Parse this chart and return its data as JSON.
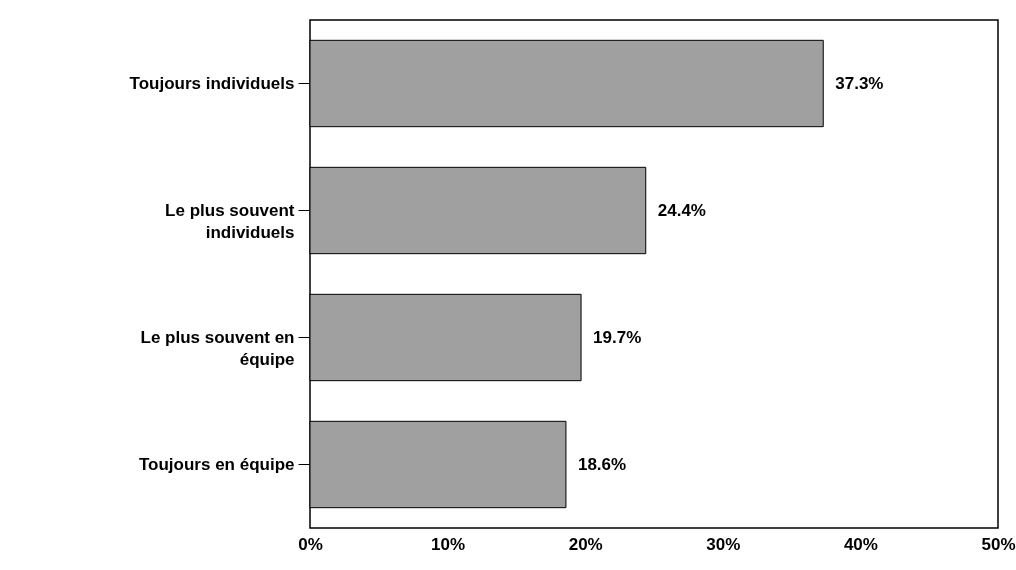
{
  "chart_data": {
    "type": "bar",
    "orientation": "horizontal",
    "categories": [
      "Toujours individuels",
      "Le plus souvent individuels",
      "Le plus souvent en équipe",
      "Toujours en équipe"
    ],
    "values": [
      37.3,
      24.4,
      19.7,
      18.6
    ],
    "value_labels": [
      "37.3%",
      "24.4%",
      "19.7%",
      "18.6%"
    ],
    "color": "#a0a0a0",
    "xlim": [
      0,
      50
    ],
    "xticks": [
      {
        "value": 0,
        "label": "0%"
      },
      {
        "value": 10,
        "label": "10%"
      },
      {
        "value": 20,
        "label": "20%"
      },
      {
        "value": 30,
        "label": "30%"
      },
      {
        "value": 40,
        "label": "40%"
      },
      {
        "value": 50,
        "label": "50%"
      }
    ],
    "grid": false
  }
}
